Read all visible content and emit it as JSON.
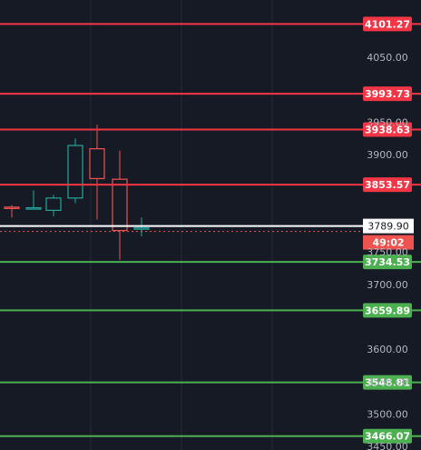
{
  "colors": {
    "background": "#161a25",
    "grid": "#252a36",
    "resistance": "#f23645",
    "support": "#4caf50",
    "up_candle": "#26a69a",
    "down_candle": "#ef5350",
    "current_price_line": "#ffffff",
    "axis_text": "#b2b5be"
  },
  "price_scale": {
    "ticks": [
      "4050.00",
      "3950.00",
      "3900.00",
      "3750.00",
      "3700.00",
      "3600.00",
      "3550.00",
      "3500.00",
      "3450.00"
    ]
  },
  "resistance_levels": [
    "4101.27",
    "3993.73",
    "3938.63",
    "3853.57"
  ],
  "support_levels": [
    "3734.53",
    "3659.89",
    "3548.81",
    "3466.07"
  ],
  "current_price": {
    "value": "3789.90",
    "countdown": "49:02"
  },
  "candles": [
    {
      "open": 3819,
      "close": 3817,
      "high": 3822,
      "low": 3803
    },
    {
      "open": 3817,
      "close": 3818,
      "high": 3845,
      "low": 3815
    },
    {
      "open": 3814,
      "close": 3833,
      "high": 3838,
      "low": 3805
    },
    {
      "open": 3833,
      "close": 3914,
      "high": 3925,
      "low": 3825
    },
    {
      "open": 3909,
      "close": 3863,
      "high": 3946,
      "low": 3800
    },
    {
      "open": 3862,
      "close": 3783,
      "high": 3906,
      "low": 3738
    },
    {
      "open": 3785,
      "close": 3787,
      "high": 3803,
      "low": 3774
    }
  ]
}
